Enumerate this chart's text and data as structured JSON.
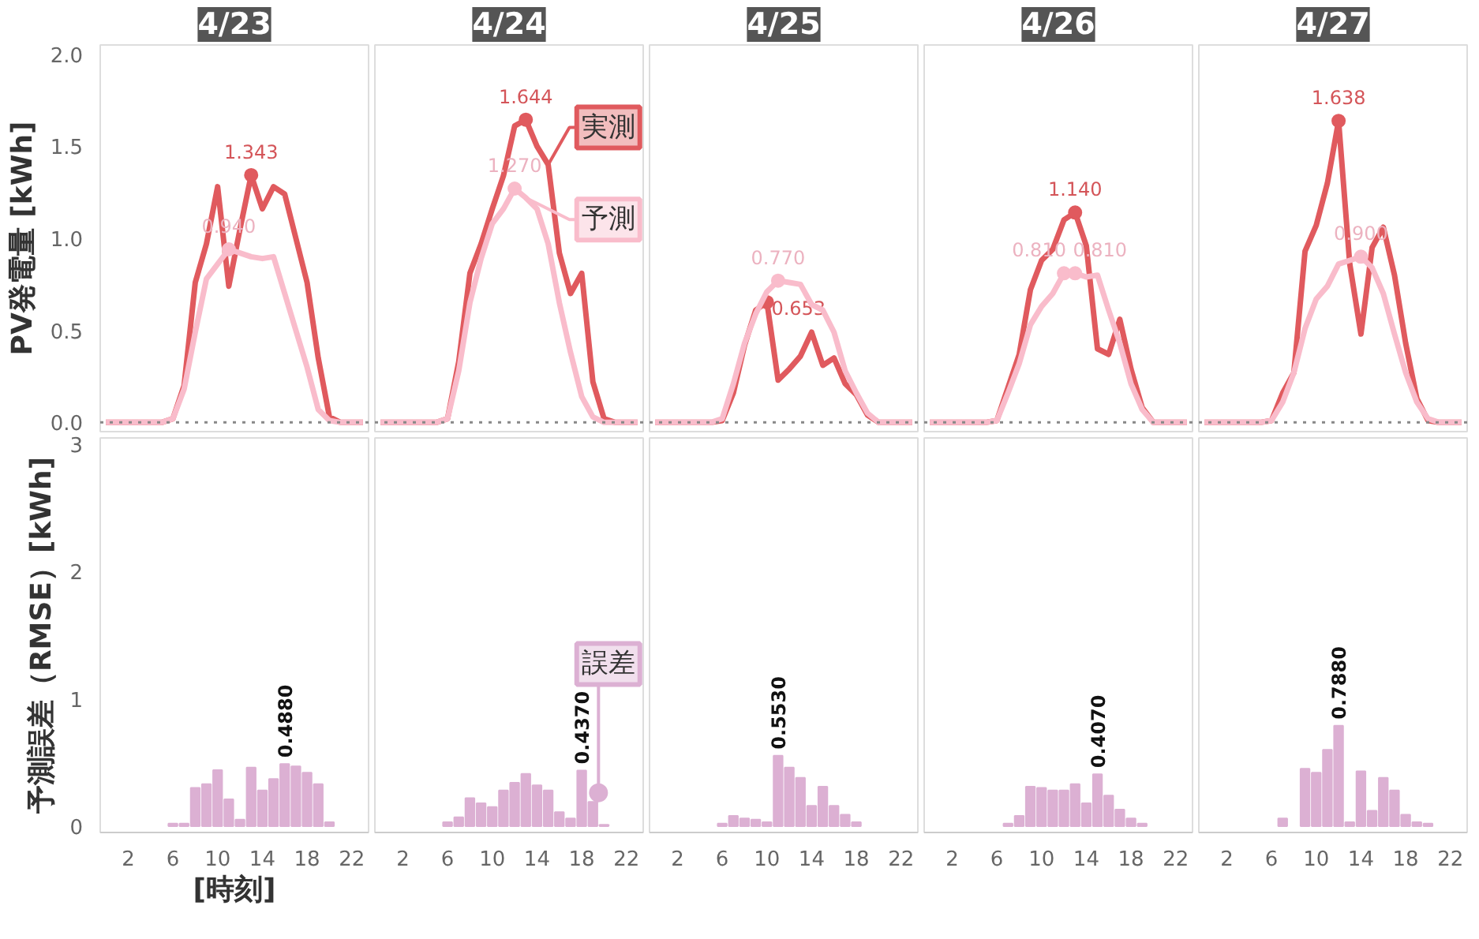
{
  "chart_data": [
    {
      "type": "line",
      "title": "4/23",
      "ylabel": "PV発電量 [kWh]",
      "x": [
        0,
        1,
        2,
        3,
        4,
        5,
        6,
        7,
        8,
        9,
        10,
        11,
        12,
        13,
        14,
        15,
        16,
        17,
        18,
        19,
        20,
        21,
        22,
        23
      ],
      "xlim": [
        -0.5,
        23.5
      ],
      "ylim": [
        -0.05,
        2.05
      ],
      "yticks": [
        {
          "value": 0,
          "label": "0.0"
        },
        0.5,
        {
          "value": 1,
          "label": "1.0"
        },
        1.5,
        {
          "value": 2,
          "label": "2.0"
        }
      ],
      "tick_labels": "y",
      "ref_lines": [
        {
          "axis": "y",
          "value": 0,
          "color": "#888888",
          "line_style": "dotted"
        }
      ],
      "series": [
        {
          "color": "#e05a5e",
          "values": [
            0,
            0,
            0,
            0,
            0,
            0,
            0.02,
            0.2,
            0.76,
            0.97,
            1.28,
            0.74,
            1.05,
            1.343,
            1.16,
            1.28,
            1.24,
            1.0,
            0.76,
            0.35,
            0.03,
            0,
            0,
            0
          ],
          "value_labels": [
            null,
            null,
            null,
            null,
            null,
            null,
            null,
            null,
            null,
            null,
            null,
            null,
            null,
            "1.343",
            null,
            null,
            null,
            null,
            null,
            null,
            null,
            null,
            null,
            null
          ]
        },
        {
          "color": "#f9bccb",
          "values": [
            0,
            0,
            0,
            0,
            0,
            0,
            0.02,
            0.18,
            0.49,
            0.78,
            0.86,
            0.94,
            0.92,
            0.9,
            0.89,
            0.9,
            0.7,
            0.5,
            0.3,
            0.07,
            0.01,
            0,
            0,
            0
          ],
          "value_labels": [
            null,
            null,
            null,
            null,
            null,
            null,
            null,
            null,
            null,
            null,
            null,
            "0.940",
            null,
            null,
            null,
            null,
            null,
            null,
            null,
            null,
            null,
            null,
            null,
            null
          ]
        }
      ]
    },
    {
      "type": "line",
      "title": "4/24",
      "legend": "top right",
      "x": [
        0,
        1,
        2,
        3,
        4,
        5,
        6,
        7,
        8,
        9,
        10,
        11,
        12,
        13,
        14,
        15,
        16,
        17,
        18,
        19,
        20,
        21,
        22,
        23
      ],
      "xlim": [
        -0.5,
        23.5
      ],
      "ylim": [
        -0.05,
        2.05
      ],
      "tick_labels": false,
      "ref_lines": [
        {
          "axis": "y",
          "value": 0,
          "color": "#888888",
          "line_style": "dotted"
        }
      ],
      "series": [
        {
          "name": "実測",
          "color": "#e05a5e",
          "values": [
            0,
            0,
            0,
            0,
            0,
            0,
            0.02,
            0.33,
            0.81,
            0.97,
            1.16,
            1.34,
            1.61,
            1.644,
            1.5,
            1.4,
            0.92,
            0.7,
            0.81,
            0.22,
            0.02,
            0,
            0,
            0
          ],
          "value_labels": [
            null,
            null,
            null,
            null,
            null,
            null,
            null,
            null,
            null,
            null,
            null,
            null,
            null,
            "1.644",
            null,
            null,
            null,
            null,
            null,
            null,
            null,
            null,
            null,
            null
          ]
        },
        {
          "name": "予測",
          "color": "#f9bccb",
          "values": [
            0,
            0,
            0,
            0,
            0,
            0,
            0.02,
            0.28,
            0.65,
            0.89,
            1.08,
            1.16,
            1.27,
            1.22,
            1.16,
            0.97,
            0.65,
            0.38,
            0.14,
            0.03,
            0,
            0,
            0,
            0
          ],
          "value_labels": [
            null,
            null,
            null,
            null,
            null,
            null,
            null,
            null,
            null,
            null,
            null,
            null,
            "1.270",
            null,
            null,
            null,
            null,
            null,
            null,
            null,
            null,
            null,
            null,
            null
          ]
        }
      ]
    },
    {
      "type": "line",
      "title": "4/25",
      "x": [
        0,
        1,
        2,
        3,
        4,
        5,
        6,
        7,
        8,
        9,
        10,
        11,
        12,
        13,
        14,
        15,
        16,
        17,
        18,
        19,
        20,
        21,
        22,
        23
      ],
      "xlim": [
        -0.5,
        23.5
      ],
      "ylim": [
        -0.05,
        2.05
      ],
      "tick_labels": false,
      "ref_lines": [
        {
          "axis": "y",
          "value": 0,
          "color": "#888888",
          "line_style": "dotted"
        }
      ],
      "series": [
        {
          "color": "#e05a5e",
          "values": [
            0,
            0,
            0,
            0,
            0,
            0,
            0.01,
            0.16,
            0.42,
            0.61,
            0.653,
            0.23,
            0.29,
            0.36,
            0.49,
            0.31,
            0.35,
            0.21,
            0.15,
            0.04,
            0,
            0,
            0,
            0
          ],
          "value_labels": [
            null,
            null,
            null,
            null,
            null,
            null,
            null,
            null,
            null,
            null,
            "0.653",
            null,
            null,
            null,
            null,
            null,
            null,
            null,
            null,
            null,
            null,
            null,
            null,
            null
          ]
        },
        {
          "color": "#f9bccb",
          "values": [
            0,
            0,
            0,
            0,
            0,
            0,
            0.02,
            0.21,
            0.43,
            0.59,
            0.71,
            0.77,
            0.76,
            0.75,
            0.64,
            0.61,
            0.49,
            0.28,
            0.16,
            0.05,
            0,
            0,
            0,
            0
          ],
          "value_labels": [
            null,
            null,
            null,
            null,
            null,
            null,
            null,
            null,
            null,
            null,
            null,
            "0.770",
            null,
            null,
            null,
            null,
            null,
            null,
            null,
            null,
            null,
            null,
            null,
            null
          ]
        }
      ]
    },
    {
      "type": "line",
      "title": "4/26",
      "x": [
        0,
        1,
        2,
        3,
        4,
        5,
        6,
        7,
        8,
        9,
        10,
        11,
        12,
        13,
        14,
        15,
        16,
        17,
        18,
        19,
        20,
        21,
        22,
        23
      ],
      "xlim": [
        -0.5,
        23.5
      ],
      "ylim": [
        -0.05,
        2.05
      ],
      "tick_labels": false,
      "ref_lines": [
        {
          "axis": "y",
          "value": 0,
          "color": "#888888",
          "line_style": "dotted"
        }
      ],
      "series": [
        {
          "color": "#e05a5e",
          "values": [
            0,
            0,
            0,
            0,
            0,
            0,
            0.01,
            0.19,
            0.37,
            0.72,
            0.88,
            0.94,
            1.1,
            1.14,
            0.96,
            0.4,
            0.37,
            0.56,
            0.29,
            0.08,
            0,
            0,
            0,
            0
          ],
          "value_labels": [
            null,
            null,
            null,
            null,
            null,
            null,
            null,
            null,
            null,
            null,
            null,
            null,
            null,
            "1.140",
            null,
            null,
            null,
            null,
            null,
            null,
            null,
            null,
            null,
            null
          ]
        },
        {
          "color": "#f9bccb",
          "values": [
            0,
            0,
            0,
            0,
            0,
            0,
            0.01,
            0.16,
            0.32,
            0.53,
            0.63,
            0.7,
            0.81,
            0.81,
            0.79,
            0.8,
            0.61,
            0.43,
            0.21,
            0.07,
            0,
            0,
            0,
            0
          ],
          "value_labels": [
            null,
            null,
            null,
            null,
            null,
            null,
            null,
            null,
            null,
            null,
            null,
            null,
            "0.810",
            "0.810",
            null,
            null,
            null,
            null,
            null,
            null,
            null,
            null,
            null,
            null
          ]
        }
      ]
    },
    {
      "type": "line",
      "title": "4/27",
      "x": [
        0,
        1,
        2,
        3,
        4,
        5,
        6,
        7,
        8,
        9,
        10,
        11,
        12,
        13,
        14,
        15,
        16,
        17,
        18,
        19,
        20,
        21,
        22,
        23
      ],
      "xlim": [
        -0.5,
        23.5
      ],
      "ylim": [
        -0.05,
        2.05
      ],
      "tick_labels": false,
      "ref_lines": [
        {
          "axis": "y",
          "value": 0,
          "color": "#888888",
          "line_style": "dotted"
        }
      ],
      "series": [
        {
          "color": "#e05a5e",
          "values": [
            0,
            0,
            0,
            0,
            0,
            0,
            0.01,
            0.16,
            0.27,
            0.93,
            1.07,
            1.3,
            1.638,
            0.86,
            0.48,
            0.95,
            1.06,
            0.8,
            0.43,
            0.13,
            0.01,
            0,
            0,
            0
          ],
          "value_labels": [
            null,
            null,
            null,
            null,
            null,
            null,
            null,
            null,
            null,
            null,
            null,
            null,
            "1.638",
            null,
            null,
            null,
            null,
            null,
            null,
            null,
            null,
            null,
            null,
            null
          ]
        },
        {
          "color": "#f9bccb",
          "values": [
            0,
            0,
            0,
            0,
            0,
            0,
            0.01,
            0.11,
            0.27,
            0.51,
            0.67,
            0.74,
            0.86,
            0.88,
            0.9,
            0.84,
            0.7,
            0.48,
            0.27,
            0.11,
            0.02,
            0,
            0,
            0
          ],
          "value_labels": [
            null,
            null,
            null,
            null,
            null,
            null,
            null,
            null,
            null,
            null,
            null,
            null,
            null,
            null,
            "0.900",
            null,
            null,
            null,
            null,
            null,
            null,
            null,
            null,
            null
          ]
        }
      ]
    },
    {
      "type": "bar",
      "ylabel": "予測誤差（RMSE）[kWh]",
      "xlabel": "[時刻]",
      "xlim": [
        -0.5,
        23.5
      ],
      "xticks": [
        2,
        6,
        10,
        14,
        18,
        22
      ],
      "ylim": [
        -0.05,
        3.05
      ],
      "yticks": [
        0,
        1,
        2,
        3
      ],
      "series": [
        {
          "color": "#dcb0d3",
          "x": [
            6,
            7,
            8,
            9,
            10,
            11,
            12,
            13,
            14,
            15,
            16,
            17,
            18,
            19,
            20
          ],
          "values": [
            0.02,
            0.02,
            0.3,
            0.33,
            0.44,
            0.21,
            0.05,
            0.46,
            0.28,
            0.37,
            0.488,
            0.47,
            0.42,
            0.33,
            0.03
          ],
          "value_labels": [
            null,
            null,
            null,
            null,
            null,
            null,
            null,
            null,
            null,
            null,
            "0.4880",
            null,
            null,
            null,
            null
          ]
        }
      ]
    },
    {
      "type": "bar",
      "legend": "right",
      "xlim": [
        -0.5,
        23.5
      ],
      "xticks": [
        2,
        6,
        10,
        14,
        18,
        22
      ],
      "ylim": [
        -0.05,
        3.05
      ],
      "tick_labels": "x",
      "series": [
        {
          "name": "誤差",
          "color": "#dcb0d3",
          "x": [
            6,
            7,
            8,
            9,
            10,
            11,
            12,
            13,
            14,
            15,
            16,
            17,
            18,
            19,
            20
          ],
          "values": [
            0.03,
            0.07,
            0.22,
            0.18,
            0.15,
            0.28,
            0.34,
            0.41,
            0.32,
            0.28,
            0.11,
            0.06,
            0.437,
            0.19,
            0.01
          ],
          "value_labels": [
            null,
            null,
            null,
            null,
            null,
            null,
            null,
            null,
            null,
            null,
            null,
            null,
            "0.4370",
            null,
            null
          ]
        }
      ]
    },
    {
      "type": "bar",
      "xlim": [
        -0.5,
        23.5
      ],
      "xticks": [
        2,
        6,
        10,
        14,
        18,
        22
      ],
      "ylim": [
        -0.05,
        3.05
      ],
      "tick_labels": "x",
      "series": [
        {
          "color": "#dcb0d3",
          "x": [
            6,
            7,
            8,
            9,
            10,
            11,
            12,
            13,
            14,
            15,
            16,
            17,
            18
          ],
          "values": [
            0.02,
            0.08,
            0.06,
            0.05,
            0.03,
            0.553,
            0.46,
            0.38,
            0.16,
            0.31,
            0.16,
            0.09,
            0.03
          ],
          "value_labels": [
            null,
            null,
            null,
            null,
            null,
            "0.5530",
            null,
            null,
            null,
            null,
            null,
            null,
            null
          ]
        }
      ]
    },
    {
      "type": "bar",
      "xlim": [
        -0.5,
        23.5
      ],
      "xticks": [
        2,
        6,
        10,
        14,
        18,
        22
      ],
      "ylim": [
        -0.05,
        3.05
      ],
      "tick_labels": "x",
      "series": [
        {
          "color": "#dcb0d3",
          "x": [
            7,
            8,
            9,
            10,
            11,
            12,
            13,
            14,
            15,
            16,
            17,
            18,
            19
          ],
          "values": [
            0.02,
            0.08,
            0.31,
            0.3,
            0.28,
            0.28,
            0.33,
            0.18,
            0.407,
            0.24,
            0.13,
            0.06,
            0.02
          ],
          "value_labels": [
            null,
            null,
            null,
            null,
            null,
            null,
            null,
            null,
            "0.4070",
            null,
            null,
            null,
            null
          ]
        }
      ]
    },
    {
      "type": "bar",
      "xlim": [
        -0.5,
        23.5
      ],
      "xticks": [
        2,
        6,
        10,
        14,
        18,
        22
      ],
      "ylim": [
        -0.05,
        3.05
      ],
      "tick_labels": "x",
      "series": [
        {
          "color": "#dcb0d3",
          "x": [
            7,
            9,
            10,
            11,
            12,
            13,
            14,
            15,
            16,
            17,
            18,
            19,
            20
          ],
          "values": [
            0.06,
            0.45,
            0.42,
            0.6,
            0.788,
            0.03,
            0.43,
            0.12,
            0.38,
            0.28,
            0.09,
            0.03,
            0.02
          ],
          "value_labels": [
            null,
            null,
            null,
            null,
            "0.7880",
            null,
            null,
            null,
            null,
            null,
            null,
            null,
            null
          ]
        }
      ]
    }
  ]
}
